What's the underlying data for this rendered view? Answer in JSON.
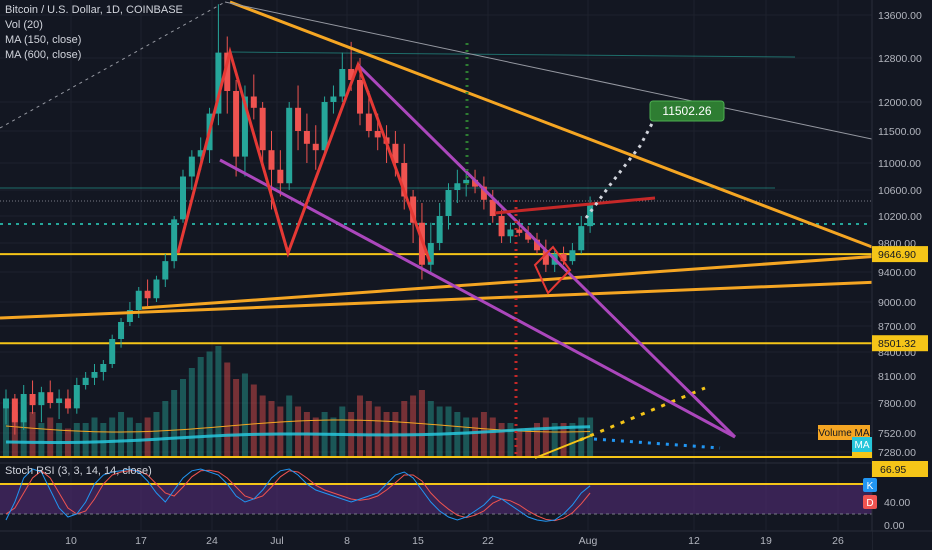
{
  "header": {
    "title": "Bitcoin / U.S. Dollar, 1D, COINBASE",
    "indicators": [
      "Vol (20)",
      "MA (150, close)",
      "MA (600, close)"
    ]
  },
  "oscillator": {
    "title": "Stoch RSI (3, 3, 14, 14, close)"
  },
  "colors": {
    "background": "#131722",
    "up": "#26a69a",
    "down": "#ef5350",
    "orange": "#f5a623",
    "purple": "#ab47bc",
    "red_pattern": "#e53935",
    "green_label": "#2e7d32",
    "oscillator_band": "#4a2a6a",
    "k_line": "#2196f3",
    "d_line": "#ef5350"
  },
  "chart_data": {
    "type": "candlestick",
    "price_axis_ticks": [
      "13600.00",
      "12800.00",
      "12000.00",
      "11500.00",
      "11000.00",
      "10600.00",
      "10200.00",
      "9800.00",
      "9400.00",
      "9000.00",
      "8700.00",
      "8400.00",
      "8100.00",
      "7800.00",
      "7520.00",
      "7280.00"
    ],
    "time_axis_ticks": [
      "10",
      "17",
      "24",
      "Jul",
      "8",
      "15",
      "22",
      "Aug",
      "12",
      "19",
      "26"
    ],
    "price_labels": [
      {
        "text": "9646.90",
        "value": 9646.9
      },
      {
        "text": "8501.32",
        "value": 8501.32
      }
    ],
    "target_label": {
      "text": "11502.26",
      "value": 11502.26
    },
    "volume_ma_label": "Volume MA",
    "ma_label": "MA",
    "oscillator_axis_ticks": [
      "40.00",
      "0.00"
    ],
    "oscillator_labels": [
      {
        "text": "66.95",
        "value": 66.95
      },
      {
        "text": "K"
      },
      {
        "text": "D"
      }
    ],
    "candles": [
      {
        "o": 7750,
        "h": 7950,
        "l": 7600,
        "c": 7850
      },
      {
        "o": 7850,
        "h": 7900,
        "l": 7500,
        "c": 7620
      },
      {
        "o": 7620,
        "h": 8000,
        "l": 7550,
        "c": 7900
      },
      {
        "o": 7900,
        "h": 8050,
        "l": 7700,
        "c": 7780
      },
      {
        "o": 7780,
        "h": 7980,
        "l": 7620,
        "c": 7920
      },
      {
        "o": 7920,
        "h": 8050,
        "l": 7750,
        "c": 7800
      },
      {
        "o": 7800,
        "h": 7950,
        "l": 7650,
        "c": 7850
      },
      {
        "o": 7850,
        "h": 7950,
        "l": 7700,
        "c": 7750
      },
      {
        "o": 7750,
        "h": 8080,
        "l": 7700,
        "c": 8000
      },
      {
        "o": 8000,
        "h": 8150,
        "l": 7950,
        "c": 8080
      },
      {
        "o": 8080,
        "h": 8250,
        "l": 8000,
        "c": 8150
      },
      {
        "o": 8150,
        "h": 8300,
        "l": 8050,
        "c": 8250
      },
      {
        "o": 8250,
        "h": 8600,
        "l": 8200,
        "c": 8550
      },
      {
        "o": 8550,
        "h": 8800,
        "l": 8450,
        "c": 8750
      },
      {
        "o": 8750,
        "h": 9000,
        "l": 8700,
        "c": 8900
      },
      {
        "o": 8900,
        "h": 9200,
        "l": 8800,
        "c": 9150
      },
      {
        "o": 9150,
        "h": 9300,
        "l": 8950,
        "c": 9050
      },
      {
        "o": 9050,
        "h": 9350,
        "l": 9000,
        "c": 9300
      },
      {
        "o": 9300,
        "h": 9650,
        "l": 9200,
        "c": 9550
      },
      {
        "o": 9550,
        "h": 10200,
        "l": 9450,
        "c": 10150
      },
      {
        "o": 10150,
        "h": 10900,
        "l": 10100,
        "c": 10800
      },
      {
        "o": 10800,
        "h": 11200,
        "l": 10600,
        "c": 11100
      },
      {
        "o": 11100,
        "h": 11400,
        "l": 10900,
        "c": 11200
      },
      {
        "o": 11200,
        "h": 11900,
        "l": 11000,
        "c": 11800
      },
      {
        "o": 11800,
        "h": 13800,
        "l": 11600,
        "c": 12900
      },
      {
        "o": 12900,
        "h": 13200,
        "l": 11800,
        "c": 12200
      },
      {
        "o": 12200,
        "h": 12400,
        "l": 10800,
        "c": 11100
      },
      {
        "o": 11100,
        "h": 12300,
        "l": 10800,
        "c": 12100
      },
      {
        "o": 12100,
        "h": 12500,
        "l": 11700,
        "c": 11900
      },
      {
        "o": 11900,
        "h": 12000,
        "l": 11000,
        "c": 11200
      },
      {
        "o": 11200,
        "h": 11500,
        "l": 10300,
        "c": 10900
      },
      {
        "o": 10900,
        "h": 11200,
        "l": 10500,
        "c": 10700
      },
      {
        "o": 10700,
        "h": 12000,
        "l": 10600,
        "c": 11900
      },
      {
        "o": 11900,
        "h": 12300,
        "l": 11200,
        "c": 11500
      },
      {
        "o": 11500,
        "h": 11800,
        "l": 11000,
        "c": 11300
      },
      {
        "o": 11300,
        "h": 11600,
        "l": 10900,
        "c": 11200
      },
      {
        "o": 11200,
        "h": 12100,
        "l": 11100,
        "c": 12000
      },
      {
        "o": 12000,
        "h": 12300,
        "l": 11800,
        "c": 12100
      },
      {
        "o": 12100,
        "h": 12900,
        "l": 12000,
        "c": 12600
      },
      {
        "o": 12600,
        "h": 13100,
        "l": 12200,
        "c": 12400
      },
      {
        "o": 12400,
        "h": 12800,
        "l": 11600,
        "c": 11800
      },
      {
        "o": 11800,
        "h": 12200,
        "l": 11400,
        "c": 11500
      },
      {
        "o": 11500,
        "h": 11800,
        "l": 11200,
        "c": 11400
      },
      {
        "o": 11400,
        "h": 11600,
        "l": 11000,
        "c": 11300
      },
      {
        "o": 11300,
        "h": 11500,
        "l": 10800,
        "c": 11000
      },
      {
        "o": 11000,
        "h": 11300,
        "l": 10300,
        "c": 10500
      },
      {
        "o": 10500,
        "h": 10600,
        "l": 9800,
        "c": 10100
      },
      {
        "o": 10100,
        "h": 10400,
        "l": 9300,
        "c": 9500
      },
      {
        "o": 9500,
        "h": 10100,
        "l": 9400,
        "c": 9800
      },
      {
        "o": 9800,
        "h": 10400,
        "l": 9700,
        "c": 10200
      },
      {
        "o": 10200,
        "h": 10700,
        "l": 10000,
        "c": 10600
      },
      {
        "o": 10600,
        "h": 10900,
        "l": 10400,
        "c": 10700
      },
      {
        "o": 10700,
        "h": 10850,
        "l": 10500,
        "c": 10750
      },
      {
        "o": 10750,
        "h": 10900,
        "l": 10550,
        "c": 10650
      },
      {
        "o": 10650,
        "h": 10800,
        "l": 10300,
        "c": 10450
      },
      {
        "o": 10450,
        "h": 10600,
        "l": 10100,
        "c": 10200
      },
      {
        "o": 10200,
        "h": 10300,
        "l": 9800,
        "c": 9900
      },
      {
        "o": 9900,
        "h": 10100,
        "l": 9800,
        "c": 10000
      },
      {
        "o": 10000,
        "h": 10150,
        "l": 9900,
        "c": 9950
      },
      {
        "o": 9950,
        "h": 10050,
        "l": 9800,
        "c": 9850
      },
      {
        "o": 9850,
        "h": 9950,
        "l": 9650,
        "c": 9700
      },
      {
        "o": 9700,
        "h": 9850,
        "l": 9400,
        "c": 9500
      },
      {
        "o": 9500,
        "h": 9700,
        "l": 9400,
        "c": 9650
      },
      {
        "o": 9650,
        "h": 9750,
        "l": 9500,
        "c": 9550
      },
      {
        "o": 9550,
        "h": 9800,
        "l": 9500,
        "c": 9700
      },
      {
        "o": 9700,
        "h": 10200,
        "l": 9650,
        "c": 10050
      },
      {
        "o": 10050,
        "h": 10500,
        "l": 9950,
        "c": 10400
      }
    ],
    "volumes": [
      0.5,
      0.4,
      0.35,
      0.4,
      0.3,
      0.35,
      0.3,
      0.25,
      0.3,
      0.3,
      0.35,
      0.3,
      0.35,
      0.4,
      0.35,
      0.3,
      0.35,
      0.4,
      0.5,
      0.6,
      0.7,
      0.8,
      0.9,
      0.95,
      1.0,
      0.85,
      0.7,
      0.75,
      0.65,
      0.55,
      0.5,
      0.45,
      0.55,
      0.45,
      0.4,
      0.35,
      0.4,
      0.35,
      0.45,
      0.4,
      0.55,
      0.5,
      0.45,
      0.4,
      0.4,
      0.5,
      0.55,
      0.6,
      0.5,
      0.45,
      0.45,
      0.4,
      0.35,
      0.35,
      0.4,
      0.35,
      0.3,
      0.3,
      0.25,
      0.25,
      0.3,
      0.35,
      0.3,
      0.3,
      0.3,
      0.35,
      0.35
    ],
    "stoch_k": [
      10,
      40,
      80,
      95,
      90,
      60,
      30,
      15,
      20,
      40,
      70,
      85,
      90,
      92,
      95,
      90,
      75,
      55,
      40,
      60,
      80,
      92,
      95,
      90,
      85,
      70,
      50,
      40,
      45,
      60,
      80,
      92,
      95,
      85,
      70,
      60,
      55,
      50,
      45,
      40,
      45,
      50,
      55,
      70,
      85,
      90,
      80,
      60,
      40,
      25,
      15,
      10,
      15,
      25,
      35,
      50,
      45,
      35,
      25,
      15,
      10,
      8,
      10,
      20,
      35,
      55,
      67
    ],
    "stoch_d": [
      20,
      30,
      55,
      80,
      92,
      80,
      55,
      30,
      20,
      25,
      45,
      70,
      85,
      90,
      92,
      92,
      85,
      70,
      55,
      50,
      65,
      82,
      92,
      93,
      90,
      80,
      65,
      50,
      45,
      50,
      65,
      82,
      92,
      90,
      80,
      68,
      60,
      55,
      50,
      45,
      43,
      45,
      50,
      60,
      72,
      85,
      85,
      75,
      55,
      40,
      28,
      18,
      14,
      18,
      25,
      38,
      45,
      42,
      35,
      25,
      17,
      11,
      9,
      13,
      22,
      37,
      55
    ]
  }
}
